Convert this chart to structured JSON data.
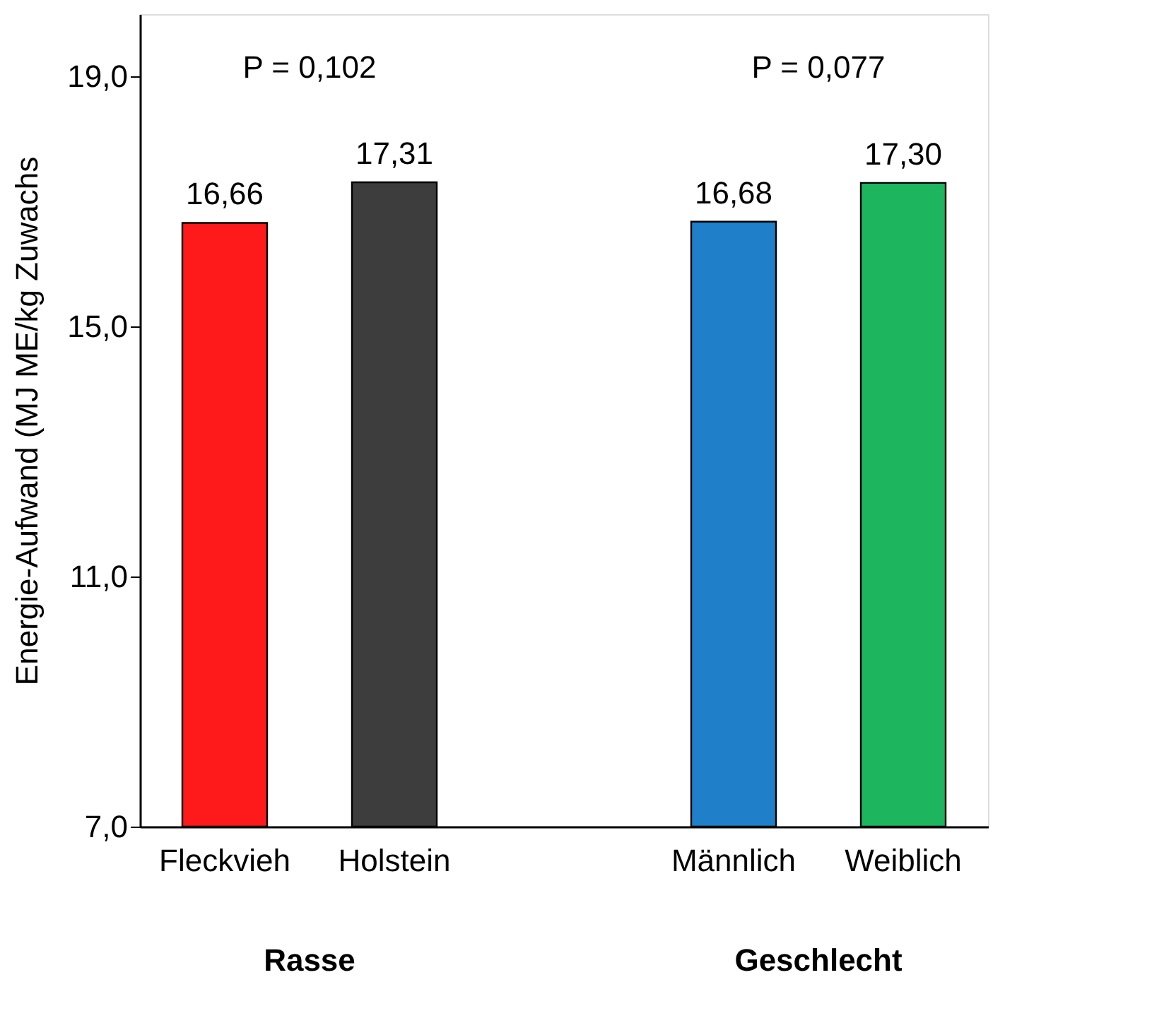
{
  "chart_data": {
    "type": "bar",
    "ylabel": "Energie-Aufwand (MJ ME/kg Zuwachs",
    "categories": [
      "Fleckvieh",
      "Holstein",
      null,
      "Männlich",
      "Weiblich"
    ],
    "values": [
      16.66,
      17.31,
      null,
      16.68,
      17.3
    ],
    "colors": [
      "#fe1a1a",
      "#3d3d3d",
      null,
      "#1f7fc8",
      "#1db55e"
    ],
    "value_labels": [
      "16,66",
      "17,31",
      null,
      "16,68",
      "17,30"
    ],
    "ylim": [
      7,
      20
    ],
    "yticks": [
      {
        "value": 7,
        "label": "7,0"
      },
      {
        "value": 11,
        "label": "11,0"
      },
      {
        "value": 15,
        "label": "15,0"
      },
      {
        "value": 19,
        "label": "19,0"
      }
    ],
    "grid": false,
    "annotations": [
      "P = 0,102",
      "P = 0,077",
      "Rasse",
      "Geschlecht"
    ]
  }
}
